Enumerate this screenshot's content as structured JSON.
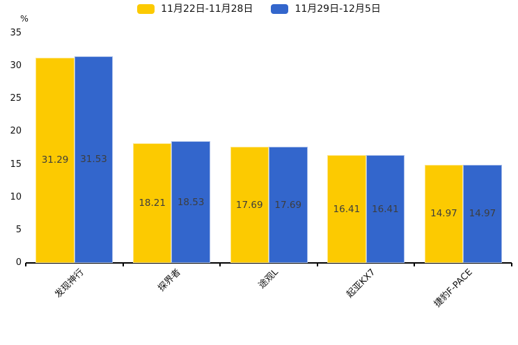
{
  "chart_data": {
    "type": "bar",
    "title": "",
    "categories": [
      "发现神行",
      "探界者",
      "途观L",
      "起亚KX7",
      "捷豹F-PACE"
    ],
    "series": [
      {
        "name": "11月22日-11月28日",
        "color": "#FCCA01",
        "values": [
          31.29,
          18.21,
          17.69,
          16.41,
          14.97
        ]
      },
      {
        "name": "11月29日-12月5日",
        "color": "#3366CC",
        "values": [
          31.53,
          18.53,
          17.69,
          16.41,
          14.97
        ]
      }
    ],
    "xlabel": "",
    "ylabel": "%",
    "ylim": [
      0,
      35
    ],
    "ytick_step": 5,
    "yticks": [
      0,
      5,
      10,
      15,
      20,
      25,
      30,
      35
    ],
    "grid": false,
    "legend_position": "top",
    "value_label_position": "inside-center",
    "value_label_color": "#3d3d3d",
    "axis_color": "#000000",
    "text_color": "#111111",
    "background_color": "#ffffff"
  }
}
